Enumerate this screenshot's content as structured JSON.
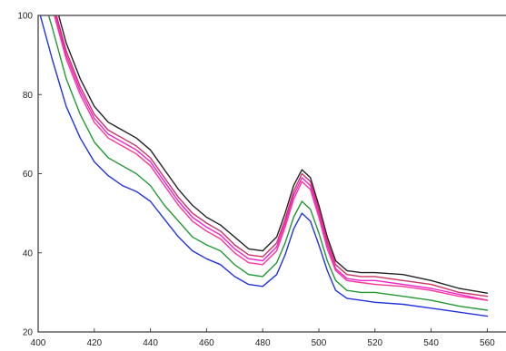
{
  "chart_data": {
    "type": "line",
    "title": "",
    "xlabel": "",
    "ylabel": "",
    "xlim": [
      400,
      560
    ],
    "ylim": [
      20,
      100
    ],
    "x_ticks": [
      400,
      420,
      440,
      460,
      480,
      500,
      520,
      540,
      560
    ],
    "y_ticks": [
      20,
      40,
      60,
      80,
      100
    ],
    "x_tick_labels": [
      "400",
      "420",
      "440",
      "460",
      "480",
      "500",
      "520",
      "540",
      "560"
    ],
    "y_tick_labels": [
      "20",
      "40",
      "60",
      "80",
      "100"
    ],
    "grid": false,
    "legend": "none",
    "x": [
      400,
      405,
      410,
      415,
      420,
      425,
      430,
      435,
      440,
      445,
      450,
      455,
      460,
      465,
      470,
      475,
      480,
      485,
      488,
      491,
      494,
      497,
      500,
      503,
      506,
      510,
      515,
      520,
      530,
      540,
      550,
      560
    ],
    "series": [
      {
        "color": "#222222",
        "values": [
          118,
          106,
          93,
          84,
          77,
          73,
          71,
          69,
          66,
          61,
          56,
          52,
          49,
          47,
          44,
          41,
          40.5,
          44,
          50,
          57,
          61,
          59,
          52,
          44,
          38,
          35.5,
          35,
          35,
          34.5,
          33,
          31,
          29.8
        ]
      },
      {
        "color": "#cc3366",
        "values": [
          116,
          104,
          91,
          82,
          75,
          71,
          69,
          67,
          64,
          59,
          54,
          50,
          47.5,
          45.5,
          42,
          39.5,
          39,
          42.5,
          48.5,
          55.5,
          60,
          58,
          51,
          43,
          37,
          34.5,
          34,
          34,
          33,
          32,
          30,
          29
        ]
      },
      {
        "color": "#ee22cc",
        "values": [
          115,
          103,
          90,
          81,
          74,
          70,
          68,
          66,
          63,
          58,
          53,
          49,
          46.5,
          44.5,
          41,
          38.5,
          38,
          41.5,
          47.5,
          54.5,
          59,
          57,
          50,
          42,
          36,
          33.5,
          33,
          33,
          32,
          31,
          29.5,
          28
        ]
      },
      {
        "color": "#ff3399",
        "values": [
          114,
          102,
          89,
          80,
          73,
          69,
          67,
          65,
          62,
          57,
          52,
          48,
          45.5,
          43.5,
          40,
          37.5,
          37,
          40.5,
          46.5,
          53.5,
          58,
          56,
          49,
          41,
          35.5,
          33,
          32.5,
          32,
          31.5,
          30.5,
          29,
          28
        ]
      },
      {
        "color": "#229933",
        "values": [
          109,
          97,
          84,
          75,
          68,
          64,
          62,
          60,
          57,
          52,
          48,
          44,
          42,
          40.5,
          37,
          34.5,
          34,
          37.5,
          42.5,
          49,
          53,
          51,
          45,
          38,
          33,
          30.5,
          30,
          30,
          29,
          28,
          26.5,
          25.5
        ]
      },
      {
        "color": "#2233dd",
        "values": [
          102,
          89,
          77,
          69,
          63,
          59.5,
          57,
          55.5,
          53,
          48.5,
          44,
          40.5,
          38.5,
          37,
          34,
          32,
          31.5,
          34.5,
          39.5,
          46,
          50,
          48,
          42,
          35.5,
          30.5,
          28.5,
          28,
          27.5,
          27,
          26,
          25,
          24
        ]
      }
    ]
  }
}
